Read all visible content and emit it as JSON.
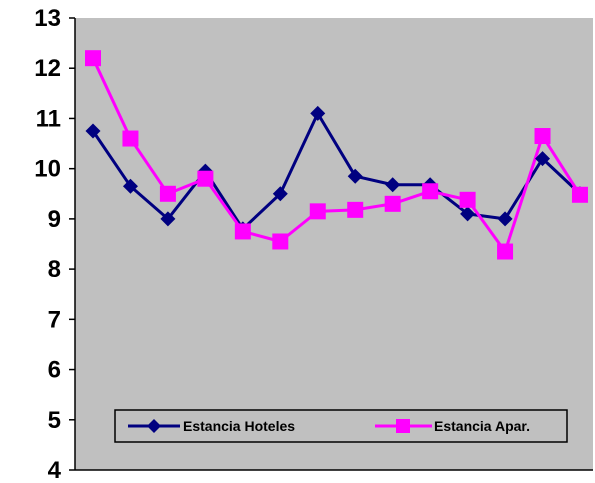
{
  "chart_data": {
    "type": "line",
    "title": "",
    "xlabel": "",
    "ylabel": "",
    "ylim": [
      4,
      13
    ],
    "yticks": [
      "4",
      "5",
      "6",
      "7",
      "8",
      "9",
      "10",
      "11",
      "12",
      "13"
    ],
    "grid": false,
    "plot_background": "#c0c0c0",
    "legend_position": "bottom-inside",
    "x": [
      1,
      2,
      3,
      4,
      5,
      6,
      7,
      8,
      9,
      10,
      11,
      12,
      13,
      14
    ],
    "series": [
      {
        "name": "Estancia Hoteles",
        "color": "#000080",
        "marker": "diamond",
        "values": [
          10.75,
          9.65,
          9.0,
          9.95,
          8.8,
          9.5,
          11.1,
          9.85,
          9.68,
          9.68,
          9.1,
          9.0,
          10.2,
          9.5
        ]
      },
      {
        "name": "Estancia Apar.",
        "color": "#ff00ff",
        "marker": "square",
        "values": [
          12.2,
          10.6,
          9.5,
          9.8,
          8.75,
          8.55,
          9.15,
          9.18,
          9.3,
          9.55,
          9.38,
          8.35,
          10.65,
          9.48
        ]
      }
    ]
  }
}
